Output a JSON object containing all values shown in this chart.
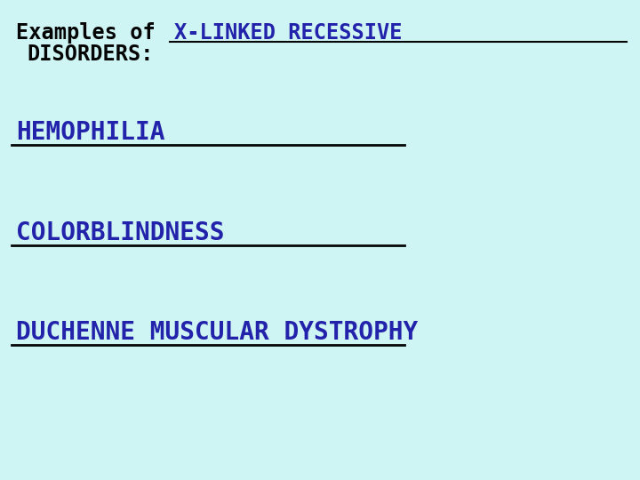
{
  "background_color": "#cff4f4",
  "title_black_text": "Examples of ",
  "title_blue_text": "X-LINKED RECESSIVE",
  "title_black_text2": "DISORDERS:",
  "items": [
    "HEMOPHILIA",
    "COLORBLINDNESS",
    "DUCHENNE MUSCULAR DYSTROPHY"
  ],
  "black_color": "#050505",
  "blue_color": "#2222aa",
  "line_color": "#050505",
  "title_fontsize": 17,
  "item_fontsize": 20,
  "fig_width": 7.2,
  "fig_height": 5.4,
  "dpi": 100
}
